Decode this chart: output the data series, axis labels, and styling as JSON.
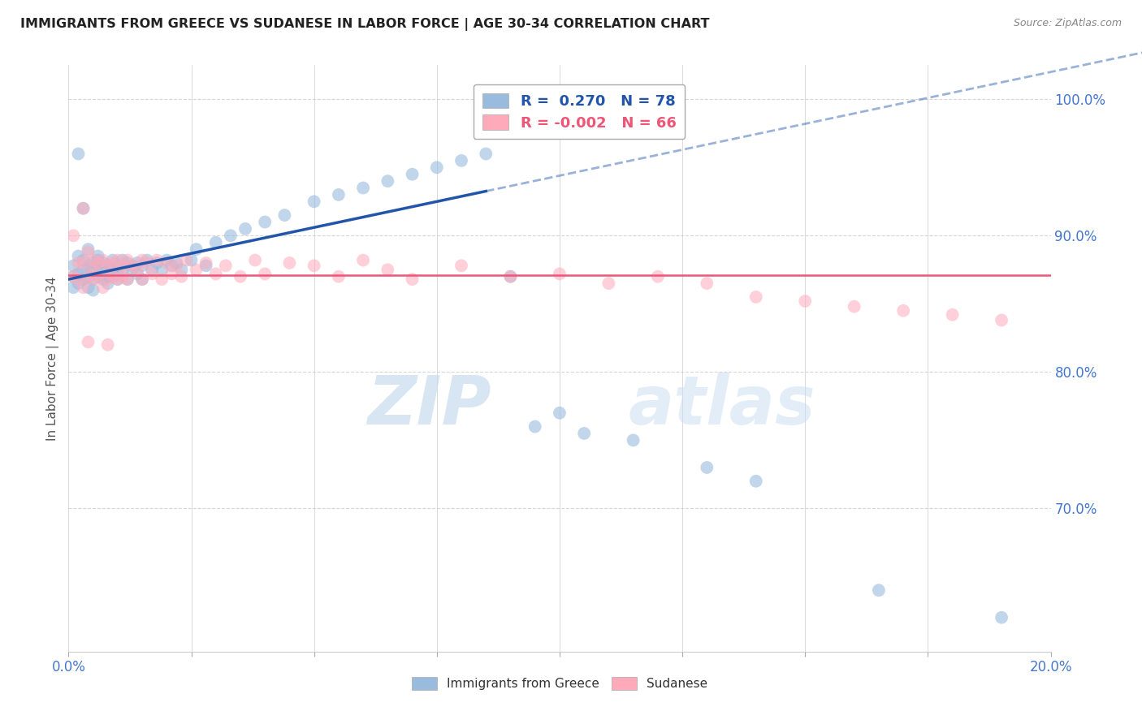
{
  "title": "IMMIGRANTS FROM GREECE VS SUDANESE IN LABOR FORCE | AGE 30-34 CORRELATION CHART",
  "source": "Source: ZipAtlas.com",
  "ylabel": "In Labor Force | Age 30-34",
  "legend_label_blue": "Immigrants from Greece",
  "legend_label_pink": "Sudanese",
  "R_blue": 0.27,
  "N_blue": 78,
  "R_pink": -0.002,
  "N_pink": 66,
  "blue_color": "#99BBDD",
  "pink_color": "#FFAABB",
  "blue_line_color": "#2255AA",
  "pink_line_color": "#EE5577",
  "background_color": "#FFFFFF",
  "axis_color": "#4477CC",
  "title_color": "#222222",
  "xlim": [
    0.0,
    0.2
  ],
  "ylim": [
    0.595,
    1.025
  ],
  "ytick_values": [
    1.0,
    0.9,
    0.8,
    0.7
  ],
  "xtick_values": [
    0.0,
    0.025,
    0.05,
    0.075,
    0.1,
    0.125,
    0.15,
    0.175,
    0.2
  ],
  "blue_trend_x0": 0.0,
  "blue_trend_y0": 0.868,
  "blue_trend_x1": 0.2,
  "blue_trend_y1": 1.02,
  "pink_trend_y": 0.871,
  "blue_scatter_x": [
    0.001,
    0.001,
    0.001,
    0.002,
    0.002,
    0.002,
    0.002,
    0.003,
    0.003,
    0.003,
    0.003,
    0.004,
    0.004,
    0.004,
    0.004,
    0.005,
    0.005,
    0.005,
    0.005,
    0.006,
    0.006,
    0.006,
    0.006,
    0.007,
    0.007,
    0.007,
    0.008,
    0.008,
    0.008,
    0.009,
    0.009,
    0.009,
    0.01,
    0.01,
    0.01,
    0.011,
    0.011,
    0.012,
    0.012,
    0.013,
    0.013,
    0.014,
    0.014,
    0.015,
    0.015,
    0.016,
    0.017,
    0.018,
    0.019,
    0.02,
    0.021,
    0.022,
    0.023,
    0.025,
    0.026,
    0.028,
    0.03,
    0.033,
    0.036,
    0.04,
    0.044,
    0.05,
    0.055,
    0.06,
    0.065,
    0.07,
    0.075,
    0.08,
    0.085,
    0.09,
    0.095,
    0.1,
    0.105,
    0.115,
    0.13,
    0.14,
    0.165,
    0.19
  ],
  "blue_scatter_y": [
    0.87,
    0.878,
    0.862,
    0.96,
    0.885,
    0.872,
    0.865,
    0.875,
    0.92,
    0.882,
    0.868,
    0.878,
    0.87,
    0.89,
    0.862,
    0.88,
    0.868,
    0.875,
    0.86,
    0.882,
    0.878,
    0.87,
    0.885,
    0.875,
    0.868,
    0.88,
    0.878,
    0.87,
    0.865,
    0.882,
    0.875,
    0.87,
    0.878,
    0.872,
    0.868,
    0.882,
    0.875,
    0.88,
    0.868,
    0.878,
    0.875,
    0.88,
    0.872,
    0.878,
    0.868,
    0.882,
    0.875,
    0.88,
    0.875,
    0.882,
    0.878,
    0.88,
    0.875,
    0.882,
    0.89,
    0.878,
    0.895,
    0.9,
    0.905,
    0.91,
    0.915,
    0.925,
    0.93,
    0.935,
    0.94,
    0.945,
    0.95,
    0.955,
    0.96,
    0.87,
    0.76,
    0.77,
    0.755,
    0.75,
    0.73,
    0.72,
    0.64,
    0.62
  ],
  "pink_scatter_x": [
    0.001,
    0.001,
    0.002,
    0.002,
    0.003,
    0.003,
    0.003,
    0.004,
    0.004,
    0.005,
    0.005,
    0.005,
    0.006,
    0.006,
    0.007,
    0.007,
    0.008,
    0.008,
    0.009,
    0.009,
    0.01,
    0.01,
    0.011,
    0.011,
    0.012,
    0.012,
    0.013,
    0.014,
    0.015,
    0.015,
    0.016,
    0.017,
    0.018,
    0.019,
    0.02,
    0.021,
    0.022,
    0.023,
    0.024,
    0.026,
    0.028,
    0.03,
    0.032,
    0.035,
    0.038,
    0.04,
    0.045,
    0.05,
    0.055,
    0.06,
    0.065,
    0.07,
    0.08,
    0.09,
    0.1,
    0.11,
    0.12,
    0.13,
    0.14,
    0.15,
    0.16,
    0.17,
    0.18,
    0.19,
    0.004,
    0.008
  ],
  "pink_scatter_y": [
    0.9,
    0.87,
    0.88,
    0.868,
    0.92,
    0.88,
    0.862,
    0.888,
    0.87,
    0.882,
    0.868,
    0.875,
    0.88,
    0.87,
    0.882,
    0.862,
    0.878,
    0.868,
    0.88,
    0.87,
    0.882,
    0.868,
    0.878,
    0.87,
    0.882,
    0.868,
    0.878,
    0.875,
    0.882,
    0.868,
    0.88,
    0.872,
    0.882,
    0.868,
    0.88,
    0.872,
    0.878,
    0.87,
    0.882,
    0.875,
    0.88,
    0.872,
    0.878,
    0.87,
    0.882,
    0.872,
    0.88,
    0.878,
    0.87,
    0.882,
    0.875,
    0.868,
    0.878,
    0.87,
    0.872,
    0.865,
    0.87,
    0.865,
    0.855,
    0.852,
    0.848,
    0.845,
    0.842,
    0.838,
    0.822,
    0.82
  ],
  "watermark_zip_color": "#C8DCF0",
  "watermark_atlas_color": "#C8DCF0"
}
